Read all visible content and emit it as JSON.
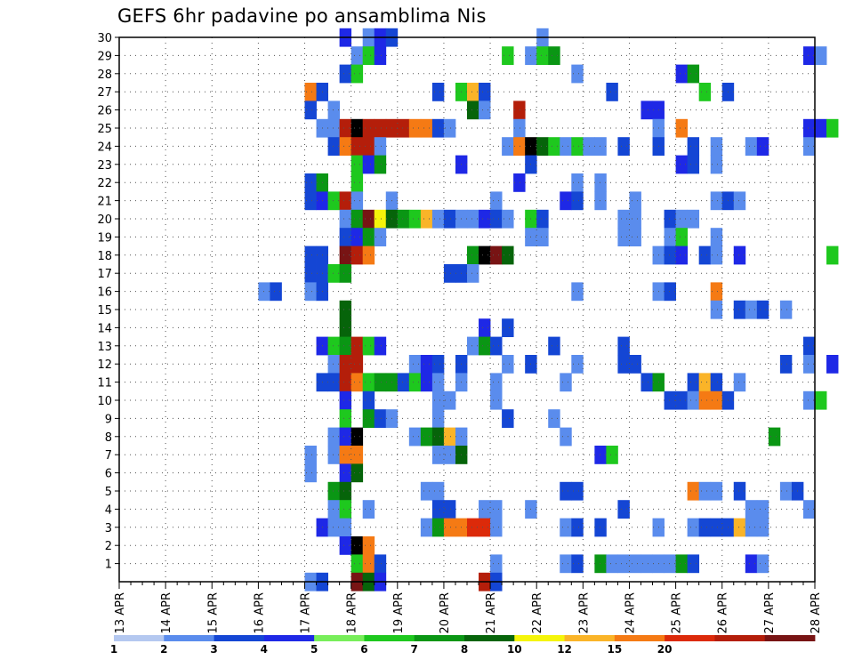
{
  "chart_data": {
    "type": "heatmap",
    "title": "GEFS 6hr padavine po ansamblima Nis",
    "xlabel": "",
    "ylabel": "",
    "x_tick_labels": [
      "13 APR",
      "14 APR",
      "15 APR",
      "16 APR",
      "17 APR",
      "18 APR",
      "19 APR",
      "20 APR",
      "21 APR",
      "22 APR",
      "23 APR",
      "24 APR",
      "25 APR",
      "26 APR",
      "27 APR",
      "28 APR"
    ],
    "y_tick_labels": [
      "1",
      "2",
      "3",
      "4",
      "5",
      "6",
      "7",
      "8",
      "9",
      "10",
      "11",
      "12",
      "13",
      "14",
      "15",
      "16",
      "17",
      "18",
      "19",
      "20",
      "21",
      "22",
      "23",
      "24",
      "25",
      "26",
      "27",
      "28",
      "29",
      "30"
    ],
    "x_axis_unit": "6-hour steps from 13 APR 00Z",
    "y_range": [
      0,
      30
    ],
    "grid": "dotted",
    "color_scale": {
      "boundaries": [
        "1",
        "2",
        "3",
        "4",
        "5",
        "6",
        "7",
        "8",
        "10",
        "12",
        "15",
        "20"
      ],
      "colors": [
        "#b4c8f0",
        "#5a8ced",
        "#1446d4",
        "#1e28e6",
        "#78ee5a",
        "#1ec81e",
        "#0a9614",
        "#06640a",
        "#f5f50a",
        "#fab428",
        "#f57a14",
        "#dc2a0a",
        "#b41e0a",
        "#781414"
      ]
    },
    "cells": [
      [
        17.75,
        30,
        3
      ],
      [
        18.25,
        30,
        1
      ],
      [
        18.5,
        30,
        3
      ],
      [
        18.75,
        30,
        2
      ],
      [
        22,
        30,
        1
      ],
      [
        18,
        29,
        1
      ],
      [
        18.25,
        29,
        5
      ],
      [
        18.5,
        29,
        3
      ],
      [
        21.25,
        29,
        5
      ],
      [
        21.75,
        29,
        1
      ],
      [
        22,
        29,
        5
      ],
      [
        22.25,
        29,
        6
      ],
      [
        27.75,
        29,
        3
      ],
      [
        28,
        29,
        1
      ],
      [
        17.75,
        28,
        2
      ],
      [
        18,
        28,
        5
      ],
      [
        22.75,
        28,
        1
      ],
      [
        25,
        28,
        3
      ],
      [
        25.25,
        28,
        6
      ],
      [
        17,
        27,
        10
      ],
      [
        17.25,
        27,
        2
      ],
      [
        19.75,
        27,
        2
      ],
      [
        20.25,
        27,
        5
      ],
      [
        20.5,
        27,
        9
      ],
      [
        20.75,
        27,
        2
      ],
      [
        23.5,
        27,
        2
      ],
      [
        25.5,
        27,
        5
      ],
      [
        26,
        27,
        2
      ],
      [
        17,
        26,
        2
      ],
      [
        17.5,
        26,
        1
      ],
      [
        20.5,
        26,
        7
      ],
      [
        20.75,
        26,
        1
      ],
      [
        21.5,
        26,
        12
      ],
      [
        24.25,
        26,
        3
      ],
      [
        24.5,
        26,
        3
      ],
      [
        17.25,
        25,
        1
      ],
      [
        17.5,
        25,
        1
      ],
      [
        17.75,
        25,
        12
      ],
      [
        18,
        25,
        14
      ],
      [
        18.25,
        25,
        12
      ],
      [
        18.5,
        25,
        12
      ],
      [
        18.75,
        25,
        12
      ],
      [
        19,
        25,
        12
      ],
      [
        19.25,
        25,
        10
      ],
      [
        19.5,
        25,
        10
      ],
      [
        19.75,
        25,
        2
      ],
      [
        20,
        25,
        1
      ],
      [
        21.5,
        25,
        1
      ],
      [
        24.5,
        25,
        1
      ],
      [
        25,
        25,
        10
      ],
      [
        27.75,
        25,
        3
      ],
      [
        28,
        25,
        3
      ],
      [
        28.25,
        25,
        5
      ],
      [
        17.5,
        24,
        2
      ],
      [
        17.75,
        24,
        10
      ],
      [
        18,
        24,
        12
      ],
      [
        18.25,
        24,
        12
      ],
      [
        18.5,
        24,
        1
      ],
      [
        21.25,
        24,
        1
      ],
      [
        21.5,
        24,
        10
      ],
      [
        21.75,
        24,
        14
      ],
      [
        22,
        24,
        7
      ],
      [
        22.25,
        24,
        5
      ],
      [
        22.5,
        24,
        1
      ],
      [
        22.75,
        24,
        5
      ],
      [
        23,
        24,
        1
      ],
      [
        23.25,
        24,
        1
      ],
      [
        23.75,
        24,
        2
      ],
      [
        24.5,
        24,
        2
      ],
      [
        25.25,
        24,
        2
      ],
      [
        25.75,
        24,
        1
      ],
      [
        26.5,
        24,
        1
      ],
      [
        26.75,
        24,
        3
      ],
      [
        27.75,
        24,
        1
      ],
      [
        18,
        23,
        5
      ],
      [
        18.25,
        23,
        3
      ],
      [
        18.5,
        23,
        6
      ],
      [
        20.25,
        23,
        3
      ],
      [
        21.75,
        23,
        2
      ],
      [
        25,
        23,
        3
      ],
      [
        25.25,
        23,
        2
      ],
      [
        25.75,
        23,
        1
      ],
      [
        17,
        22,
        2
      ],
      [
        17.25,
        22,
        6
      ],
      [
        18,
        22,
        5
      ],
      [
        21.5,
        22,
        3
      ],
      [
        22.75,
        22,
        1
      ],
      [
        23.25,
        22,
        1
      ],
      [
        17,
        21,
        2
      ],
      [
        17.25,
        21,
        3
      ],
      [
        17.5,
        21,
        5
      ],
      [
        17.75,
        21,
        12
      ],
      [
        18,
        21,
        1
      ],
      [
        18.75,
        21,
        1
      ],
      [
        21,
        21,
        1
      ],
      [
        22.5,
        21,
        3
      ],
      [
        22.75,
        21,
        2
      ],
      [
        23.25,
        21,
        1
      ],
      [
        24,
        21,
        1
      ],
      [
        25.75,
        21,
        1
      ],
      [
        26,
        21,
        2
      ],
      [
        26.25,
        21,
        1
      ],
      [
        17.75,
        20,
        1
      ],
      [
        18,
        20,
        6
      ],
      [
        18.25,
        20,
        13
      ],
      [
        18.5,
        20,
        8
      ],
      [
        18.75,
        20,
        7
      ],
      [
        19,
        20,
        6
      ],
      [
        19.25,
        20,
        5
      ],
      [
        19.5,
        20,
        9
      ],
      [
        19.75,
        20,
        1
      ],
      [
        20,
        20,
        2
      ],
      [
        20.25,
        20,
        1
      ],
      [
        20.5,
        20,
        1
      ],
      [
        20.75,
        20,
        3
      ],
      [
        21,
        20,
        2
      ],
      [
        21.25,
        20,
        1
      ],
      [
        21.75,
        20,
        5
      ],
      [
        22,
        20,
        2
      ],
      [
        23.75,
        20,
        1
      ],
      [
        24,
        20,
        1
      ],
      [
        24.75,
        20,
        2
      ],
      [
        25,
        20,
        1
      ],
      [
        25.25,
        20,
        1
      ],
      [
        17.75,
        19,
        2
      ],
      [
        18,
        19,
        3
      ],
      [
        18.25,
        19,
        6
      ],
      [
        18.5,
        19,
        1
      ],
      [
        21.75,
        19,
        1
      ],
      [
        22,
        19,
        1
      ],
      [
        23.75,
        19,
        1
      ],
      [
        24,
        19,
        1
      ],
      [
        24.75,
        19,
        1
      ],
      [
        25,
        19,
        5
      ],
      [
        25.75,
        19,
        1
      ],
      [
        17,
        18,
        2
      ],
      [
        17.25,
        18,
        2
      ],
      [
        17.75,
        18,
        13
      ],
      [
        18,
        18,
        12
      ],
      [
        18.25,
        18,
        10
      ],
      [
        20.5,
        18,
        6
      ],
      [
        20.75,
        18,
        14
      ],
      [
        21,
        18,
        13
      ],
      [
        21.25,
        18,
        7
      ],
      [
        24.5,
        18,
        1
      ],
      [
        24.75,
        18,
        2
      ],
      [
        25,
        18,
        3
      ],
      [
        25.5,
        18,
        2
      ],
      [
        25.75,
        18,
        1
      ],
      [
        26.25,
        18,
        3
      ],
      [
        28.25,
        18,
        5
      ],
      [
        17,
        17,
        2
      ],
      [
        17.25,
        17,
        2
      ],
      [
        17.5,
        17,
        5
      ],
      [
        17.75,
        17,
        6
      ],
      [
        20,
        17,
        2
      ],
      [
        20.25,
        17,
        2
      ],
      [
        20.5,
        17,
        1
      ],
      [
        16,
        16,
        1
      ],
      [
        16.25,
        16,
        2
      ],
      [
        17,
        16,
        1
      ],
      [
        17.25,
        16,
        2
      ],
      [
        22.75,
        16,
        1
      ],
      [
        24.5,
        16,
        1
      ],
      [
        24.75,
        16,
        2
      ],
      [
        25.75,
        16,
        10
      ],
      [
        17.75,
        15,
        7
      ],
      [
        25.75,
        15,
        1
      ],
      [
        26.25,
        15,
        2
      ],
      [
        26.5,
        15,
        1
      ],
      [
        26.75,
        15,
        2
      ],
      [
        27.25,
        15,
        1
      ],
      [
        17.75,
        14,
        7
      ],
      [
        20.75,
        14,
        3
      ],
      [
        21.25,
        14,
        2
      ],
      [
        17.25,
        13,
        3
      ],
      [
        17.5,
        13,
        5
      ],
      [
        17.75,
        13,
        6
      ],
      [
        18,
        13,
        12
      ],
      [
        18.25,
        13,
        5
      ],
      [
        18.5,
        13,
        3
      ],
      [
        20.5,
        13,
        1
      ],
      [
        20.75,
        13,
        6
      ],
      [
        21,
        13,
        2
      ],
      [
        22.25,
        13,
        2
      ],
      [
        23.75,
        13,
        2
      ],
      [
        27.75,
        13,
        2
      ],
      [
        17.5,
        12,
        1
      ],
      [
        17.75,
        12,
        12
      ],
      [
        18,
        12,
        12
      ],
      [
        19.25,
        12,
        1
      ],
      [
        19.5,
        12,
        3
      ],
      [
        19.75,
        12,
        2
      ],
      [
        20.25,
        12,
        2
      ],
      [
        21.25,
        12,
        1
      ],
      [
        21.75,
        12,
        2
      ],
      [
        22.75,
        12,
        1
      ],
      [
        23.75,
        12,
        2
      ],
      [
        24,
        12,
        2
      ],
      [
        27.25,
        12,
        2
      ],
      [
        27.75,
        12,
        1
      ],
      [
        28.25,
        12,
        3
      ],
      [
        17.25,
        11,
        2
      ],
      [
        17.5,
        11,
        2
      ],
      [
        17.75,
        11,
        12
      ],
      [
        18,
        11,
        10
      ],
      [
        18.25,
        11,
        5
      ],
      [
        18.5,
        11,
        6
      ],
      [
        18.75,
        11,
        6
      ],
      [
        19,
        11,
        2
      ],
      [
        19.25,
        11,
        5
      ],
      [
        19.5,
        11,
        3
      ],
      [
        19.75,
        11,
        1
      ],
      [
        20.25,
        11,
        1
      ],
      [
        21,
        11,
        1
      ],
      [
        22.5,
        11,
        1
      ],
      [
        24.25,
        11,
        2
      ],
      [
        24.5,
        11,
        6
      ],
      [
        25.25,
        11,
        2
      ],
      [
        25.5,
        11,
        9
      ],
      [
        25.75,
        11,
        2
      ],
      [
        26.25,
        11,
        1
      ],
      [
        17.75,
        10,
        3
      ],
      [
        18.25,
        10,
        2
      ],
      [
        19.75,
        10,
        1
      ],
      [
        20,
        10,
        1
      ],
      [
        21,
        10,
        1
      ],
      [
        24.75,
        10,
        2
      ],
      [
        25,
        10,
        2
      ],
      [
        25.25,
        10,
        1
      ],
      [
        25.5,
        10,
        10
      ],
      [
        25.75,
        10,
        10
      ],
      [
        26,
        10,
        2
      ],
      [
        27.75,
        10,
        1
      ],
      [
        28,
        10,
        5
      ],
      [
        17.75,
        9,
        5
      ],
      [
        18.25,
        9,
        6
      ],
      [
        18.5,
        9,
        2
      ],
      [
        18.75,
        9,
        1
      ],
      [
        19.75,
        9,
        1
      ],
      [
        21.25,
        9,
        2
      ],
      [
        22.25,
        9,
        1
      ],
      [
        17.5,
        8,
        1
      ],
      [
        17.75,
        8,
        3
      ],
      [
        18,
        8,
        14
      ],
      [
        19.25,
        8,
        1
      ],
      [
        19.5,
        8,
        6
      ],
      [
        19.75,
        8,
        7
      ],
      [
        20,
        8,
        9
      ],
      [
        20.25,
        8,
        1
      ],
      [
        22.5,
        8,
        1
      ],
      [
        27,
        8,
        6
      ],
      [
        17,
        7,
        1
      ],
      [
        17.5,
        7,
        1
      ],
      [
        17.75,
        7,
        10
      ],
      [
        18,
        7,
        10
      ],
      [
        19.75,
        7,
        1
      ],
      [
        20,
        7,
        1
      ],
      [
        20.25,
        7,
        7
      ],
      [
        23.25,
        7,
        3
      ],
      [
        23.5,
        7,
        5
      ],
      [
        17,
        6,
        1
      ],
      [
        17.75,
        6,
        3
      ],
      [
        18,
        6,
        7
      ],
      [
        17.5,
        5,
        6
      ],
      [
        17.75,
        5,
        7
      ],
      [
        19.5,
        5,
        1
      ],
      [
        19.75,
        5,
        1
      ],
      [
        22.5,
        5,
        2
      ],
      [
        22.75,
        5,
        2
      ],
      [
        25.25,
        5,
        10
      ],
      [
        25.5,
        5,
        1
      ],
      [
        25.75,
        5,
        1
      ],
      [
        26.25,
        5,
        2
      ],
      [
        27.25,
        5,
        1
      ],
      [
        27.5,
        5,
        2
      ],
      [
        17.5,
        4,
        1
      ],
      [
        17.75,
        4,
        5
      ],
      [
        18.25,
        4,
        1
      ],
      [
        19.75,
        4,
        2
      ],
      [
        20,
        4,
        2
      ],
      [
        20.75,
        4,
        1
      ],
      [
        21,
        4,
        1
      ],
      [
        21.75,
        4,
        1
      ],
      [
        23.75,
        4,
        2
      ],
      [
        26.5,
        4,
        1
      ],
      [
        26.75,
        4,
        1
      ],
      [
        27.75,
        4,
        1
      ],
      [
        17.25,
        3,
        3
      ],
      [
        17.5,
        3,
        1
      ],
      [
        17.75,
        3,
        1
      ],
      [
        19.5,
        3,
        1
      ],
      [
        19.75,
        3,
        6
      ],
      [
        20,
        3,
        10
      ],
      [
        20.25,
        3,
        10
      ],
      [
        20.5,
        3,
        11
      ],
      [
        20.75,
        3,
        11
      ],
      [
        21,
        3,
        1
      ],
      [
        22.5,
        3,
        1
      ],
      [
        22.75,
        3,
        2
      ],
      [
        23.25,
        3,
        2
      ],
      [
        24.5,
        3,
        1
      ],
      [
        25.25,
        3,
        1
      ],
      [
        25.5,
        3,
        2
      ],
      [
        25.75,
        3,
        2
      ],
      [
        26,
        3,
        2
      ],
      [
        26.25,
        3,
        9
      ],
      [
        26.5,
        3,
        1
      ],
      [
        26.75,
        3,
        1
      ],
      [
        17.75,
        2,
        3
      ],
      [
        18,
        2,
        14
      ],
      [
        18.25,
        2,
        10
      ],
      [
        18,
        1,
        5
      ],
      [
        18.25,
        1,
        10
      ],
      [
        18.5,
        1,
        2
      ],
      [
        21,
        1,
        1
      ],
      [
        22.5,
        1,
        1
      ],
      [
        22.75,
        1,
        2
      ],
      [
        23.25,
        1,
        6
      ],
      [
        23.5,
        1,
        1
      ],
      [
        23.75,
        1,
        1
      ],
      [
        24,
        1,
        1
      ],
      [
        24.25,
        1,
        1
      ],
      [
        24.5,
        1,
        1
      ],
      [
        24.75,
        1,
        1
      ],
      [
        25,
        1,
        6
      ],
      [
        25.25,
        1,
        2
      ],
      [
        26.5,
        1,
        3
      ],
      [
        26.75,
        1,
        1
      ],
      [
        17,
        0,
        1
      ],
      [
        17.25,
        0,
        2
      ],
      [
        18,
        0,
        13
      ],
      [
        18.25,
        0,
        7
      ],
      [
        18.5,
        0,
        3
      ],
      [
        20.75,
        0,
        12
      ],
      [
        21,
        0,
        2
      ]
    ]
  }
}
